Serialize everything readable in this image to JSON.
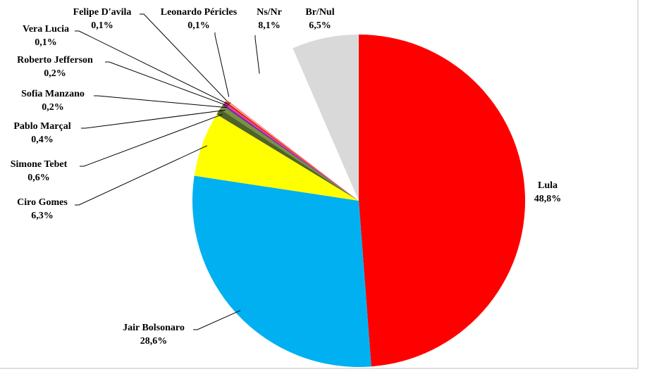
{
  "chart_data": {
    "type": "pie",
    "categories": [
      "Lula",
      "Jair Bolsonaro",
      "Ciro Gomes",
      "Simone Tebet",
      "Pablo Marçal",
      "Sofia Manzano",
      "Roberto Jefferson",
      "Vera Lucia",
      "Felipe D'avila",
      "Leonardo Péricles",
      "Ns/Nr",
      "Br/Nul"
    ],
    "values": [
      48.8,
      28.6,
      6.3,
      0.6,
      0.4,
      0.2,
      0.2,
      0.1,
      0.1,
      0.1,
      8.1,
      6.5
    ],
    "value_labels": [
      "48,8%",
      "28,6%",
      "6,3%",
      "0,6%",
      "0,4%",
      "0,2%",
      "0,2%",
      "0,1%",
      "0,1%",
      "0,1%",
      "8,1%",
      "6,5%"
    ],
    "colors": [
      "#ff0000",
      "#00b0f0",
      "#ffff00",
      "#4f6228",
      "#77933c",
      "#7030a0",
      "#ff3399",
      "#c00000",
      "#ffc000",
      "#ff66cc",
      "#ffffff",
      "#d9d9d9"
    ]
  }
}
